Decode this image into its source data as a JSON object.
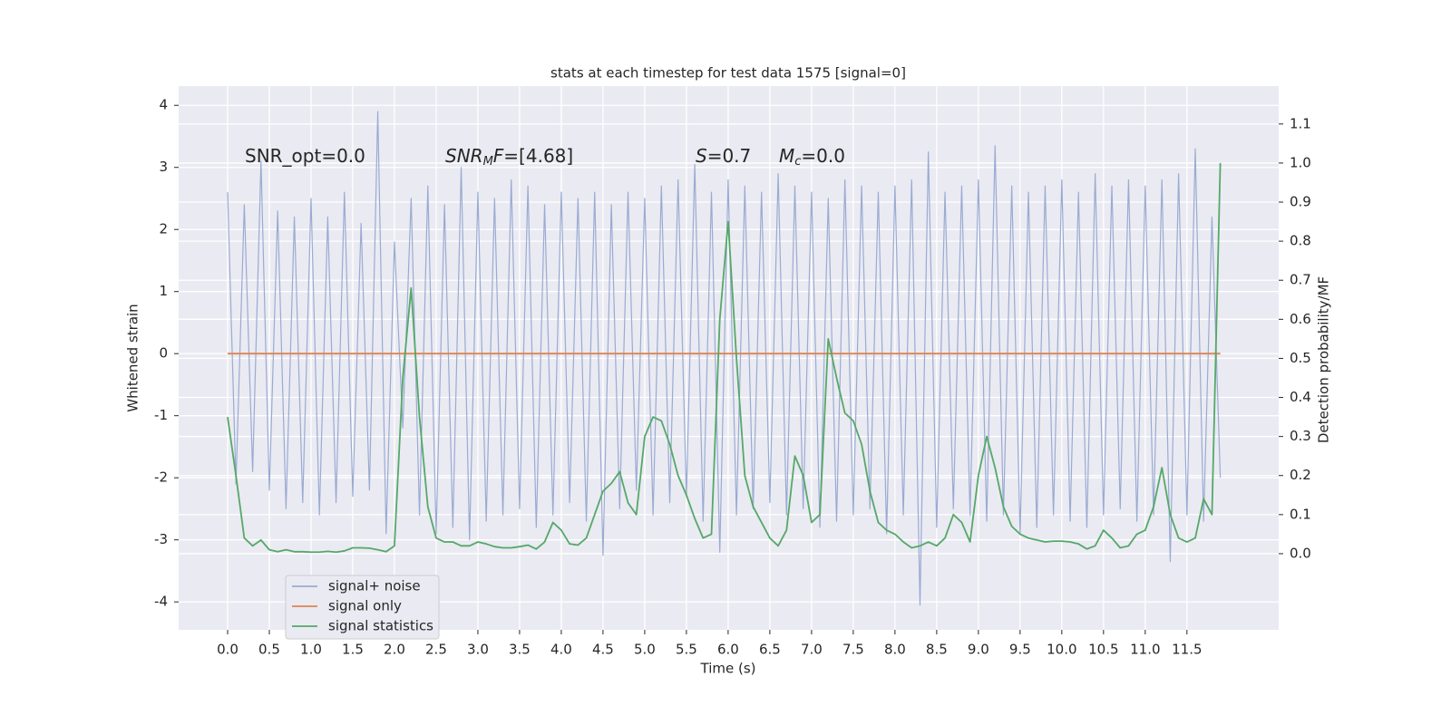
{
  "chart_data": {
    "type": "line",
    "title": "stats at each timestep for test data 1575 [signal=0]",
    "xlabel": "Time (s)",
    "ylabel": "Whitened strain",
    "y2label": "Detection probability/MF",
    "x": [
      0.0,
      0.1,
      0.2,
      0.3,
      0.4,
      0.5,
      0.6,
      0.7,
      0.8,
      0.9,
      1.0,
      1.1,
      1.2,
      1.3,
      1.4,
      1.5,
      1.6,
      1.7,
      1.8,
      1.9,
      2.0,
      2.1,
      2.2,
      2.3,
      2.4,
      2.5,
      2.6,
      2.7,
      2.8,
      2.9,
      3.0,
      3.1,
      3.2,
      3.3,
      3.4,
      3.5,
      3.6,
      3.7,
      3.8,
      3.9,
      4.0,
      4.1,
      4.2,
      4.3,
      4.4,
      4.5,
      4.6,
      4.7,
      4.8,
      4.9,
      5.0,
      5.1,
      5.2,
      5.3,
      5.4,
      5.5,
      5.6,
      5.7,
      5.8,
      5.9,
      6.0,
      6.1,
      6.2,
      6.3,
      6.4,
      6.5,
      6.6,
      6.7,
      6.8,
      6.9,
      7.0,
      7.1,
      7.2,
      7.3,
      7.4,
      7.5,
      7.6,
      7.7,
      7.8,
      7.9,
      8.0,
      8.1,
      8.2,
      8.3,
      8.4,
      8.5,
      8.6,
      8.7,
      8.8,
      8.9,
      9.0,
      9.1,
      9.2,
      9.3,
      9.4,
      9.5,
      9.6,
      9.7,
      9.8,
      9.9,
      10.0,
      10.1,
      10.2,
      10.3,
      10.4,
      10.5,
      10.6,
      10.7,
      10.8,
      10.9,
      11.0,
      11.1,
      11.2,
      11.3,
      11.4,
      11.5,
      11.6,
      11.7,
      11.8,
      11.9
    ],
    "series": [
      {
        "name": "signal+ noise",
        "color": "#9aabd2",
        "values": [
          2.6,
          -2.1,
          2.4,
          -1.9,
          3.1,
          -2.2,
          2.3,
          -2.5,
          2.2,
          -2.4,
          2.5,
          -2.6,
          2.2,
          -2.4,
          2.6,
          -2.3,
          2.1,
          -2.2,
          3.9,
          -2.9,
          1.8,
          -1.2,
          2.5,
          -2.6,
          2.7,
          -2.9,
          2.4,
          -2.8,
          3.0,
          -3.0,
          2.6,
          -2.7,
          2.5,
          -2.6,
          2.8,
          -2.5,
          2.7,
          -2.8,
          2.4,
          -2.6,
          2.6,
          -2.4,
          2.5,
          -2.7,
          2.6,
          -3.25,
          2.4,
          -2.5,
          2.6,
          -2.2,
          2.5,
          -2.6,
          2.7,
          -2.4,
          2.8,
          -2.3,
          3.05,
          -2.7,
          2.6,
          -3.2,
          2.8,
          -2.6,
          2.7,
          -2.5,
          2.6,
          -2.4,
          2.9,
          -2.6,
          2.7,
          -2.5,
          2.6,
          -2.8,
          2.5,
          -2.7,
          2.8,
          -2.6,
          2.7,
          -2.5,
          2.6,
          -2.9,
          2.7,
          -2.6,
          2.8,
          -4.05,
          3.25,
          -2.8,
          2.6,
          -2.5,
          2.7,
          -2.6,
          2.8,
          -2.7,
          3.35,
          -2.6,
          2.7,
          -2.9,
          2.6,
          -2.8,
          2.7,
          -2.6,
          2.8,
          -2.7,
          2.6,
          -2.8,
          2.9,
          -2.6,
          2.7,
          -2.5,
          2.8,
          -2.7,
          2.7,
          -2.6,
          2.8,
          -3.35,
          2.9,
          -2.6,
          3.3,
          -2.7,
          2.2,
          -2.0
        ]
      },
      {
        "name": "signal only",
        "color": "#dd8452",
        "values": [
          0,
          0,
          0,
          0,
          0,
          0,
          0,
          0,
          0,
          0,
          0,
          0,
          0,
          0,
          0,
          0,
          0,
          0,
          0,
          0,
          0,
          0,
          0,
          0,
          0,
          0,
          0,
          0,
          0,
          0,
          0,
          0,
          0,
          0,
          0,
          0,
          0,
          0,
          0,
          0,
          0,
          0,
          0,
          0,
          0,
          0,
          0,
          0,
          0,
          0,
          0,
          0,
          0,
          0,
          0,
          0,
          0,
          0,
          0,
          0,
          0,
          0,
          0,
          0,
          0,
          0,
          0,
          0,
          0,
          0,
          0,
          0,
          0,
          0,
          0,
          0,
          0,
          0,
          0,
          0,
          0,
          0,
          0,
          0,
          0,
          0,
          0,
          0,
          0,
          0,
          0,
          0,
          0,
          0,
          0,
          0,
          0,
          0,
          0,
          0,
          0,
          0,
          0,
          0,
          0,
          0,
          0,
          0,
          0,
          0,
          0,
          0,
          0,
          0,
          0,
          0,
          0,
          0,
          0,
          0
        ]
      },
      {
        "name": "signal statistics",
        "color": "#55a868",
        "axis": "y2",
        "values": [
          0.35,
          0.2,
          0.04,
          0.02,
          0.035,
          0.01,
          0.005,
          0.01,
          0.005,
          0.005,
          0.004,
          0.004,
          0.006,
          0.004,
          0.007,
          0.015,
          0.015,
          0.014,
          0.01,
          0.005,
          0.02,
          0.45,
          0.68,
          0.35,
          0.12,
          0.04,
          0.03,
          0.03,
          0.02,
          0.02,
          0.03,
          0.025,
          0.018,
          0.015,
          0.015,
          0.018,
          0.022,
          0.012,
          0.03,
          0.08,
          0.06,
          0.025,
          0.022,
          0.04,
          0.1,
          0.16,
          0.18,
          0.21,
          0.13,
          0.1,
          0.3,
          0.35,
          0.34,
          0.28,
          0.2,
          0.15,
          0.09,
          0.04,
          0.05,
          0.6,
          0.85,
          0.5,
          0.2,
          0.12,
          0.08,
          0.04,
          0.02,
          0.06,
          0.25,
          0.2,
          0.08,
          0.1,
          0.55,
          0.45,
          0.36,
          0.34,
          0.28,
          0.16,
          0.08,
          0.06,
          0.05,
          0.03,
          0.015,
          0.02,
          0.03,
          0.02,
          0.04,
          0.1,
          0.08,
          0.03,
          0.2,
          0.3,
          0.22,
          0.12,
          0.07,
          0.05,
          0.04,
          0.035,
          0.03,
          0.032,
          0.032,
          0.03,
          0.025,
          0.012,
          0.02,
          0.06,
          0.04,
          0.015,
          0.02,
          0.05,
          0.06,
          0.12,
          0.22,
          0.1,
          0.04,
          0.03,
          0.04,
          0.14,
          0.1,
          1.0
        ]
      }
    ],
    "xlim": [
      -0.587,
      12.6
    ],
    "xticks": [
      {
        "value": 0,
        "label": "0.0"
      },
      0.5,
      {
        "value": 1,
        "label": "1.0"
      },
      1.5,
      {
        "value": 2,
        "label": "2.0"
      },
      2.5,
      {
        "value": 3,
        "label": "3.0"
      },
      3.5,
      {
        "value": 4,
        "label": "4.0"
      },
      4.5,
      {
        "value": 5,
        "label": "5.0"
      },
      5.5,
      {
        "value": 6,
        "label": "6.0"
      },
      6.5,
      {
        "value": 7,
        "label": "7.0"
      },
      7.5,
      {
        "value": 8,
        "label": "8.0"
      },
      8.5,
      {
        "value": 9,
        "label": "9.0"
      },
      9.5,
      {
        "value": 10,
        "label": "10.0"
      },
      10.5,
      {
        "value": 11,
        "label": "11.0"
      },
      11.5
    ],
    "ylim": [
      -4.45,
      4.31
    ],
    "yticks": [
      -4,
      -3,
      -2,
      -1,
      0,
      1,
      2,
      3,
      4
    ],
    "y2lim": [
      -0.195,
      1.197
    ],
    "y2ticks": [
      {
        "value": 0,
        "label": "0.0"
      },
      0.1,
      0.2,
      0.3,
      0.4,
      0.5,
      0.6,
      0.7,
      0.8,
      0.9,
      {
        "value": 1,
        "label": "1.0"
      },
      1.1
    ],
    "grid": true,
    "legend": "lower left",
    "annotations": [
      {
        "parts": [
          {
            "text": "SNR_opt=0.0"
          }
        ]
      },
      {
        "parts": [
          {
            "text": "SNR",
            "italic": true
          },
          {
            "text": "M",
            "italic": true,
            "sub": true
          },
          {
            "text": "F",
            "italic": true
          },
          {
            "text": "=[4.68]"
          }
        ]
      },
      {
        "parts": [
          {
            "text": "S",
            "italic": true
          },
          {
            "text": "=0.7"
          }
        ]
      },
      {
        "parts": [
          {
            "text": "M",
            "italic": true
          },
          {
            "text": "c",
            "italic": true,
            "sub": true
          },
          {
            "text": "=0.0"
          }
        ]
      }
    ]
  }
}
